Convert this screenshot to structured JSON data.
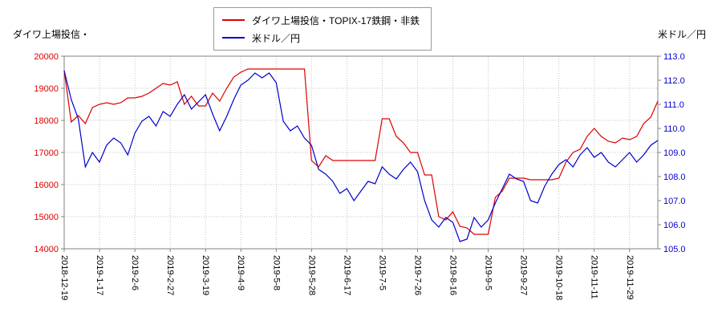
{
  "titles": {
    "left": "ダイワ上場投信・",
    "right": "米ドル／円"
  },
  "chart_data": {
    "type": "line",
    "legend_position": "top-center",
    "grid": "dotted",
    "grid_color": "#c0c0c0",
    "frame_color": "#808080",
    "x_ticks": [
      {
        "index": 0,
        "label": "2018-12-19"
      },
      {
        "index": 5,
        "label": "2019-1-17"
      },
      {
        "index": 10,
        "label": "2019-2-6"
      },
      {
        "index": 15,
        "label": "2019-2-27"
      },
      {
        "index": 20,
        "label": "2019-3-19"
      },
      {
        "index": 25,
        "label": "2019-4-9"
      },
      {
        "index": 30,
        "label": "2019-5-8"
      },
      {
        "index": 35,
        "label": "2019-5-28"
      },
      {
        "index": 40,
        "label": "2019-6-17"
      },
      {
        "index": 45,
        "label": "2019-7-5"
      },
      {
        "index": 50,
        "label": "2019-7-26"
      },
      {
        "index": 55,
        "label": "2019-8-16"
      },
      {
        "index": 60,
        "label": "2019-9-5"
      },
      {
        "index": 65,
        "label": "2019-9-27"
      },
      {
        "index": 70,
        "label": "2019-10-18"
      },
      {
        "index": 75,
        "label": "2019-11-11"
      },
      {
        "index": 80,
        "label": "2019-11-29"
      }
    ],
    "left_axis": {
      "min": 14000,
      "max": 20000,
      "color": "#dd0000",
      "ticks": [
        {
          "value": 14000,
          "label": "14000"
        },
        {
          "value": 15000,
          "label": "15000"
        },
        {
          "value": 16000,
          "label": "16000"
        },
        {
          "value": 17000,
          "label": "17000"
        },
        {
          "value": 18000,
          "label": "18000"
        },
        {
          "value": 19000,
          "label": "19000"
        },
        {
          "value": 20000,
          "label": "20000"
        }
      ]
    },
    "right_axis": {
      "min": 105.0,
      "max": 113.0,
      "color": "#0000cc",
      "ticks": [
        {
          "value": 105.0,
          "label": "105.0"
        },
        {
          "value": 106.0,
          "label": "106.0"
        },
        {
          "value": 107.0,
          "label": "107.0"
        },
        {
          "value": 108.0,
          "label": "108.0"
        },
        {
          "value": 109.0,
          "label": "109.0"
        },
        {
          "value": 110.0,
          "label": "110.0"
        },
        {
          "value": 111.0,
          "label": "111.0"
        },
        {
          "value": 112.0,
          "label": "112.0"
        },
        {
          "value": 113.0,
          "label": "113.0"
        }
      ]
    },
    "series": [
      {
        "name": "ダイワ上場投信・TOPIX-17鉄鋼・非鉄",
        "axis": "left",
        "color": "#dd0000",
        "values": [
          19550,
          17950,
          18150,
          17900,
          18400,
          18500,
          18550,
          18500,
          18550,
          18700,
          18700,
          18750,
          18850,
          19000,
          19150,
          19100,
          19200,
          18500,
          18750,
          18450,
          18450,
          18850,
          18600,
          19000,
          19350,
          19500,
          19600,
          19600,
          19600,
          19600,
          19600,
          19600,
          19600,
          19600,
          19600,
          16750,
          16550,
          16900,
          16750,
          16750,
          16750,
          16750,
          16750,
          16750,
          16750,
          18050,
          18050,
          17500,
          17300,
          17000,
          17000,
          16300,
          16300,
          15000,
          14900,
          15150,
          14700,
          14650,
          14450,
          14450,
          14450,
          15600,
          15800,
          16200,
          16200,
          16200,
          16150,
          16150,
          16150,
          16150,
          16200,
          16700,
          17000,
          17100,
          17500,
          17750,
          17500,
          17350,
          17300,
          17450,
          17400,
          17500,
          17900,
          18100,
          18600
        ]
      },
      {
        "name": "米ドル／円",
        "axis": "right",
        "color": "#0000cc",
        "values": [
          112.4,
          111.2,
          110.4,
          108.4,
          109.0,
          108.6,
          109.3,
          109.6,
          109.4,
          108.9,
          109.8,
          110.3,
          110.5,
          110.1,
          110.7,
          110.5,
          111.0,
          111.4,
          110.8,
          111.1,
          111.4,
          110.6,
          109.9,
          110.5,
          111.2,
          111.8,
          112.0,
          112.3,
          112.1,
          112.3,
          111.9,
          110.3,
          109.9,
          110.1,
          109.6,
          109.3,
          108.3,
          108.1,
          107.8,
          107.3,
          107.5,
          107.0,
          107.4,
          107.8,
          107.7,
          108.4,
          108.1,
          107.9,
          108.3,
          108.6,
          108.2,
          107.0,
          106.2,
          105.9,
          106.3,
          106.1,
          105.3,
          105.4,
          106.3,
          105.9,
          106.2,
          106.9,
          107.5,
          108.1,
          107.9,
          107.8,
          107.0,
          106.9,
          107.6,
          108.1,
          108.5,
          108.7,
          108.4,
          108.9,
          109.2,
          108.8,
          109.0,
          108.6,
          108.4,
          108.7,
          109.0,
          108.6,
          108.9,
          109.3,
          109.5
        ]
      }
    ]
  }
}
